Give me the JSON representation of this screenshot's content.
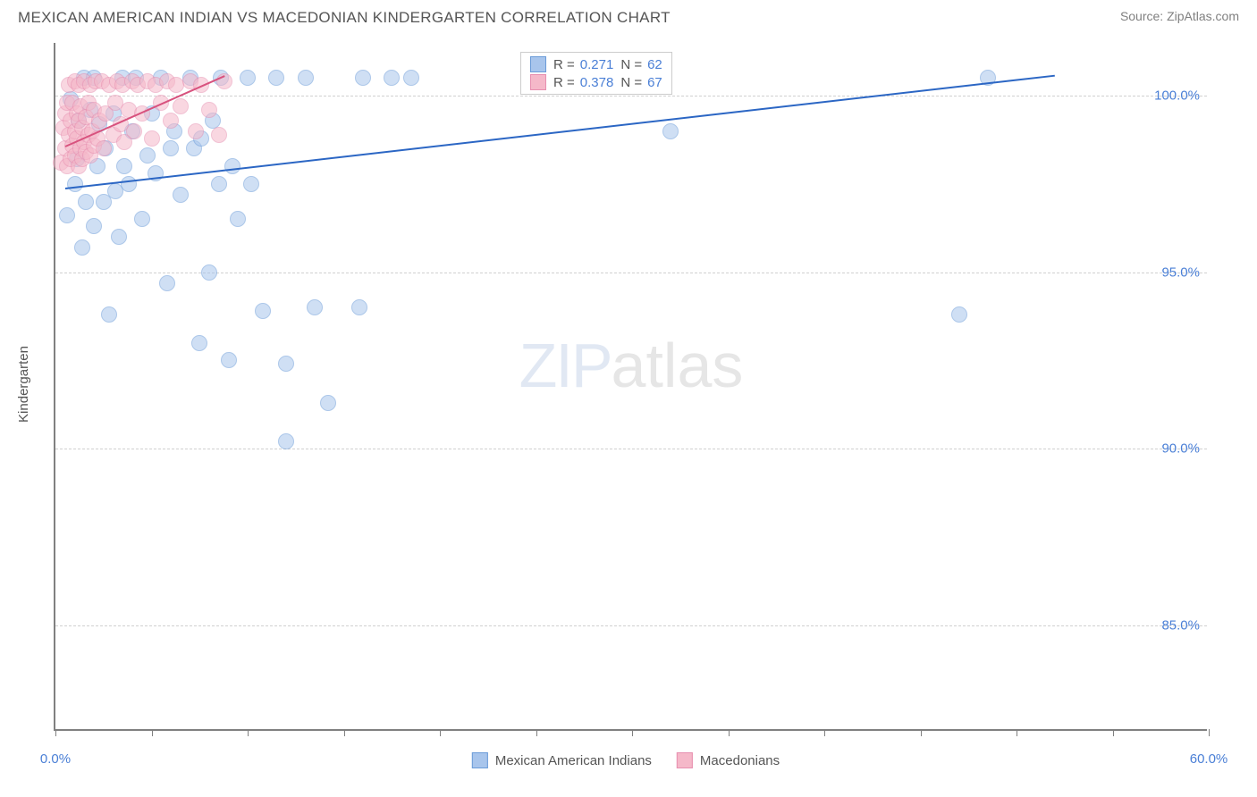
{
  "header": {
    "title": "MEXICAN AMERICAN INDIAN VS MACEDONIAN KINDERGARTEN CORRELATION CHART",
    "source": "Source: ZipAtlas.com"
  },
  "chart": {
    "type": "scatter",
    "ylabel": "Kindergarten",
    "xlim": [
      0,
      60
    ],
    "ylim": [
      82,
      101.5
    ],
    "xtick_positions": [
      0,
      5,
      10,
      15,
      20,
      25,
      30,
      35,
      40,
      45,
      50,
      55,
      60
    ],
    "xtick_labels": {
      "0": "0.0%",
      "60": "60.0%"
    },
    "ytick_positions": [
      85,
      90,
      95,
      100
    ],
    "ytick_labels": [
      "85.0%",
      "90.0%",
      "95.0%",
      "100.0%"
    ],
    "background_color": "#ffffff",
    "grid_color": "#d0d0d0",
    "axis_color": "#808080",
    "marker_radius": 9,
    "marker_opacity": 0.55,
    "series": [
      {
        "name": "Mexican American Indians",
        "color_fill": "#a8c5ec",
        "color_stroke": "#6a9bd8",
        "trend_color": "#2b66c4",
        "R": "0.271",
        "N": "62",
        "trend_x": [
          0.5,
          52
        ],
        "trend_y": [
          97.4,
          100.6
        ],
        "points": [
          [
            0.6,
            96.6
          ],
          [
            0.8,
            99.9
          ],
          [
            1.0,
            97.5
          ],
          [
            1.1,
            98.2
          ],
          [
            1.2,
            99.3
          ],
          [
            1.4,
            95.7
          ],
          [
            1.5,
            100.5
          ],
          [
            1.6,
            97.0
          ],
          [
            1.8,
            99.6
          ],
          [
            2.0,
            96.3
          ],
          [
            2.0,
            100.5
          ],
          [
            2.2,
            98.0
          ],
          [
            2.3,
            99.2
          ],
          [
            2.5,
            97.0
          ],
          [
            2.6,
            98.5
          ],
          [
            2.8,
            93.8
          ],
          [
            3.0,
            99.5
          ],
          [
            3.1,
            97.3
          ],
          [
            3.3,
            96.0
          ],
          [
            3.5,
            100.5
          ],
          [
            3.6,
            98.0
          ],
          [
            3.8,
            97.5
          ],
          [
            4.0,
            99.0
          ],
          [
            4.2,
            100.5
          ],
          [
            4.5,
            96.5
          ],
          [
            4.8,
            98.3
          ],
          [
            5.0,
            99.5
          ],
          [
            5.2,
            97.8
          ],
          [
            5.5,
            100.5
          ],
          [
            5.8,
            94.7
          ],
          [
            6.0,
            98.5
          ],
          [
            6.2,
            99.0
          ],
          [
            6.5,
            97.2
          ],
          [
            7.0,
            100.5
          ],
          [
            7.2,
            98.5
          ],
          [
            7.5,
            93.0
          ],
          [
            7.6,
            98.8
          ],
          [
            8.0,
            95.0
          ],
          [
            8.2,
            99.3
          ],
          [
            8.5,
            97.5
          ],
          [
            8.6,
            100.5
          ],
          [
            9.0,
            92.5
          ],
          [
            9.2,
            98.0
          ],
          [
            9.5,
            96.5
          ],
          [
            10.0,
            100.5
          ],
          [
            10.2,
            97.5
          ],
          [
            10.8,
            93.9
          ],
          [
            11.5,
            100.5
          ],
          [
            12.0,
            90.2
          ],
          [
            12.0,
            92.4
          ],
          [
            13.0,
            100.5
          ],
          [
            13.5,
            94.0
          ],
          [
            14.2,
            91.3
          ],
          [
            15.8,
            94.0
          ],
          [
            16.0,
            100.5
          ],
          [
            17.5,
            100.5
          ],
          [
            18.5,
            100.5
          ],
          [
            26.5,
            100.5
          ],
          [
            28.0,
            100.5
          ],
          [
            32.0,
            99.0
          ],
          [
            47.0,
            93.8
          ],
          [
            48.5,
            100.5
          ]
        ]
      },
      {
        "name": "Macedonians",
        "color_fill": "#f5b8c9",
        "color_stroke": "#e78fb0",
        "trend_color": "#d8527e",
        "R": "0.378",
        "N": "67",
        "trend_x": [
          0.5,
          8.8
        ],
        "trend_y": [
          98.6,
          100.6
        ],
        "points": [
          [
            0.3,
            98.1
          ],
          [
            0.4,
            99.1
          ],
          [
            0.5,
            98.5
          ],
          [
            0.5,
            99.5
          ],
          [
            0.6,
            98.0
          ],
          [
            0.6,
            99.8
          ],
          [
            0.7,
            98.9
          ],
          [
            0.7,
            100.3
          ],
          [
            0.8,
            98.2
          ],
          [
            0.8,
            99.3
          ],
          [
            0.9,
            98.6
          ],
          [
            0.9,
            99.8
          ],
          [
            1.0,
            98.3
          ],
          [
            1.0,
            99.0
          ],
          [
            1.0,
            100.4
          ],
          [
            1.1,
            98.8
          ],
          [
            1.1,
            99.5
          ],
          [
            1.2,
            98.0
          ],
          [
            1.2,
            99.3
          ],
          [
            1.2,
            100.3
          ],
          [
            1.3,
            98.5
          ],
          [
            1.3,
            99.7
          ],
          [
            1.4,
            98.2
          ],
          [
            1.4,
            99.1
          ],
          [
            1.5,
            98.7
          ],
          [
            1.5,
            100.4
          ],
          [
            1.6,
            98.4
          ],
          [
            1.6,
            99.4
          ],
          [
            1.7,
            98.9
          ],
          [
            1.7,
            99.8
          ],
          [
            1.8,
            98.3
          ],
          [
            1.8,
            100.3
          ],
          [
            1.9,
            99.0
          ],
          [
            2.0,
            98.6
          ],
          [
            2.0,
            99.6
          ],
          [
            2.1,
            100.4
          ],
          [
            2.2,
            98.8
          ],
          [
            2.3,
            99.3
          ],
          [
            2.4,
            100.4
          ],
          [
            2.5,
            98.5
          ],
          [
            2.6,
            99.5
          ],
          [
            2.8,
            100.3
          ],
          [
            3.0,
            98.9
          ],
          [
            3.1,
            99.8
          ],
          [
            3.2,
            100.4
          ],
          [
            3.4,
            99.2
          ],
          [
            3.5,
            100.3
          ],
          [
            3.6,
            98.7
          ],
          [
            3.8,
            99.6
          ],
          [
            4.0,
            100.4
          ],
          [
            4.1,
            99.0
          ],
          [
            4.3,
            100.3
          ],
          [
            4.5,
            99.5
          ],
          [
            4.8,
            100.4
          ],
          [
            5.0,
            98.8
          ],
          [
            5.2,
            100.3
          ],
          [
            5.5,
            99.8
          ],
          [
            5.8,
            100.4
          ],
          [
            6.0,
            99.3
          ],
          [
            6.3,
            100.3
          ],
          [
            6.5,
            99.7
          ],
          [
            7.0,
            100.4
          ],
          [
            7.3,
            99.0
          ],
          [
            7.6,
            100.3
          ],
          [
            8.0,
            99.6
          ],
          [
            8.5,
            98.9
          ],
          [
            8.8,
            100.4
          ]
        ]
      }
    ],
    "watermark": {
      "zip": "ZIP",
      "atlas": "atlas"
    },
    "legend_labels": {
      "R": "R =",
      "N": "N ="
    }
  }
}
